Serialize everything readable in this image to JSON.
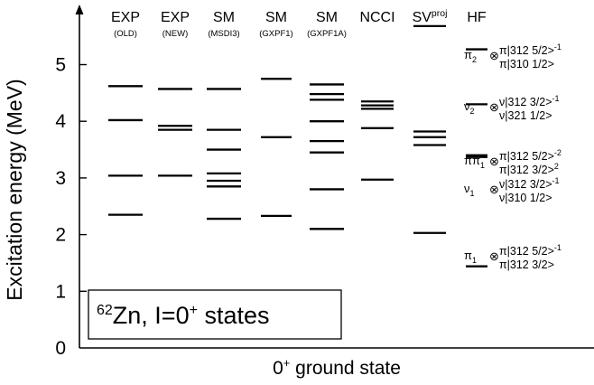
{
  "chart_data": {
    "type": "level-scheme",
    "title": "62Zn, I=0+ states",
    "title_parts": {
      "mass": "62",
      "element": "Zn, I=0",
      "parity": "+",
      "suffix": " states"
    },
    "xlabel": "0+ ground state",
    "xlabel_parts": {
      "base": "0",
      "sup": "+",
      "rest": " ground state"
    },
    "ylabel": "Excitation energy (MeV)",
    "ylim": [
      0,
      5.8
    ],
    "yticks": [
      0,
      1,
      2,
      3,
      4,
      5
    ],
    "columns": [
      {
        "label": "EXP",
        "sublabel": "(OLD)",
        "levels": [
          2.35,
          3.04,
          4.02,
          4.62
        ]
      },
      {
        "label": "EXP",
        "sublabel": "(NEW)",
        "levels": [
          3.04,
          3.85,
          3.92,
          4.57
        ]
      },
      {
        "label": "SM",
        "sublabel": "(MSDI3)",
        "levels": [
          2.28,
          2.85,
          2.95,
          3.08,
          3.5,
          3.85,
          4.57
        ]
      },
      {
        "label": "SM",
        "sublabel": "(GXPF1)",
        "levels": [
          2.33,
          3.72,
          4.75
        ]
      },
      {
        "label": "SM",
        "sublabel": "(GXPF1A)",
        "levels": [
          2.1,
          2.8,
          3.45,
          3.65,
          4.0,
          4.38,
          4.48,
          4.65
        ]
      },
      {
        "label": "NCCI",
        "sublabel": "",
        "levels": [
          2.97,
          3.88,
          4.22,
          4.28,
          4.35
        ]
      },
      {
        "label": "SV",
        "label_sup": "proj",
        "sublabel": "",
        "levels": [
          2.03,
          3.58,
          3.72,
          3.82,
          5.68
        ]
      },
      {
        "label": "HF",
        "sublabel": "",
        "levels": [
          1.44,
          3.37,
          3.4,
          4.3,
          5.27
        ]
      }
    ],
    "hf_annotations": [
      {
        "symbol": "π",
        "sub": "2",
        "config_top": "π|312 5/2>",
        "config_top_exp": "-1",
        "config_bottom": "π|310 1/2>",
        "config_bottom_exp": ""
      },
      {
        "symbol": "ν",
        "sub": "2",
        "config_top": "ν|312 3/2>",
        "config_top_exp": "-1",
        "config_bottom": "ν|321 1/2>",
        "config_bottom_exp": ""
      },
      {
        "symbol": "ππ",
        "sub": "1",
        "config_top": "π|312 5/2>",
        "config_top_exp": "-2",
        "config_bottom": "π|312 3/2>",
        "config_bottom_exp": "2"
      },
      {
        "symbol": "ν",
        "sub": "1",
        "config_top": "ν|312 3/2>",
        "config_top_exp": "-1",
        "config_bottom": "ν|310 1/2>",
        "config_bottom_exp": ""
      },
      {
        "symbol": "π",
        "sub": "1",
        "config_top": "π|312 5/2>",
        "config_top_exp": "-1",
        "config_bottom": "π|312 3/2>",
        "config_bottom_exp": ""
      }
    ],
    "otimes": "⊗",
    "grid": false,
    "legend": "none",
    "colors": {
      "levels": "#000000",
      "axis": "#000000"
    }
  }
}
